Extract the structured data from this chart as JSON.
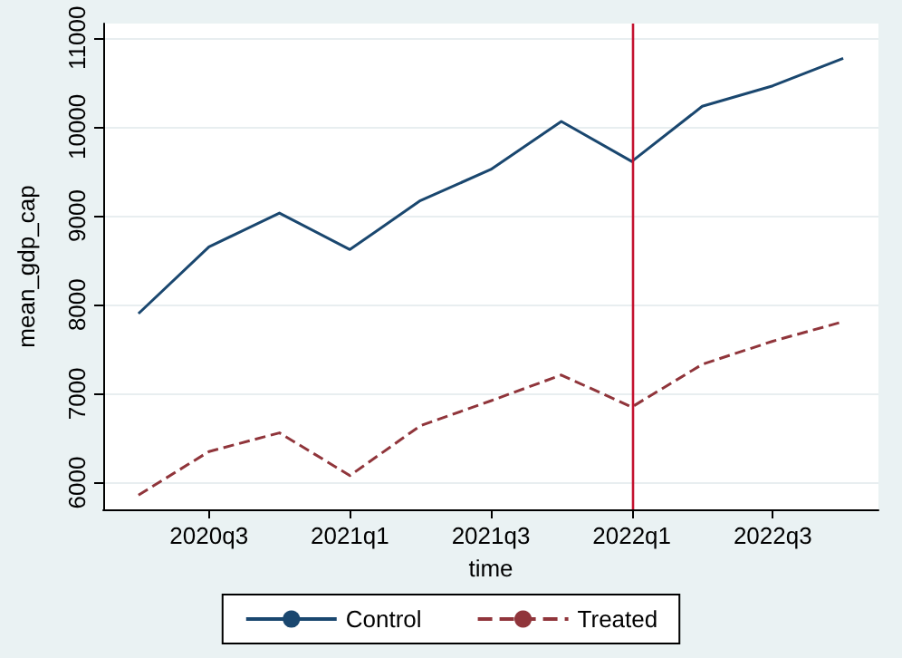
{
  "chart_data": {
    "type": "line",
    "xlabel": "time",
    "ylabel": "mean_gdp_cap",
    "categories": [
      null,
      "2020q3",
      null,
      "2021q1",
      null,
      "2021q3",
      null,
      "2022q1",
      null,
      "2022q3",
      null
    ],
    "series": [
      {
        "name": "Control",
        "color": "#1a476f",
        "line_style": "solid",
        "values": [
          7900,
          8650,
          9030,
          8620,
          9170,
          9520,
          10060,
          9610,
          10230,
          10460,
          10770
        ]
      },
      {
        "name": "Treated",
        "color": "#90353b",
        "line_style": "dashed",
        "values": [
          5860,
          6350,
          6560,
          6080,
          6640,
          6920,
          7210,
          6850,
          7330,
          7590,
          7810
        ]
      }
    ],
    "ylim": [
      5700,
      11160
    ],
    "yticks": [
      6000,
      7000,
      8000,
      9000,
      10000,
      11000
    ],
    "ref_lines": [
      {
        "axis": "x",
        "value": "2022q1",
        "color": "#c4122f"
      }
    ],
    "grid": "y",
    "legend": "bottom",
    "marker": "none"
  }
}
